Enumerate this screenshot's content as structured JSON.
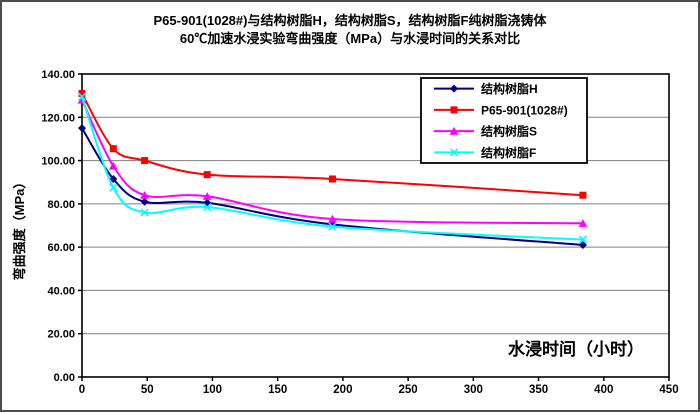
{
  "figure": {
    "title_line1": "P65-901(1028#)与结构树脂H，结构树脂S，结构树脂F纯树脂浇铸体",
    "title_line2": "60℃加速水浸实验弯曲强度（MPa）与水浸时间的关系对比"
  },
  "chart_data": {
    "type": "line",
    "title": "P65-901(1028#)与结构树脂H，结构树脂S，结构树脂F纯树脂浇铸体 60℃加速水浸实验弯曲强度（MPa）与水浸时间的关系对比",
    "xlabel": "水浸时间（小时）",
    "ylabel": "弯曲强度（MPa）",
    "x": [
      0,
      24,
      48,
      96,
      192,
      384
    ],
    "xlim": [
      0,
      450
    ],
    "ylim": [
      0,
      140
    ],
    "x_ticks": [
      0,
      50,
      100,
      150,
      200,
      250,
      300,
      350,
      400,
      450
    ],
    "y_ticks": [
      "0.00",
      "20.00",
      "40.00",
      "60.00",
      "80.00",
      "100.00",
      "120.00",
      "140.00"
    ],
    "grid": "horizontal-only",
    "grid_color": "#808080",
    "axis_color": "#000000",
    "legend_position": "top-right-inside",
    "line_style": "smoothed",
    "series": [
      {
        "name": "结构树脂H",
        "color": "#000080",
        "marker": "diamond",
        "values": [
          115,
          91.5,
          81,
          80.5,
          70.5,
          61
        ]
      },
      {
        "name": "P65-901(1028#)",
        "color": "#FF0000",
        "marker": "square",
        "values": [
          131,
          105.5,
          100,
          93.5,
          91.5,
          84
        ]
      },
      {
        "name": "结构树脂S",
        "color": "#FF00FF",
        "marker": "triangle",
        "values": [
          128,
          97.5,
          84,
          83.5,
          73,
          71
        ]
      },
      {
        "name": "结构树脂F",
        "color": "#00FFFF",
        "marker": "x",
        "values": [
          129.5,
          87.5,
          76,
          78.5,
          69.5,
          63.5
        ]
      }
    ]
  }
}
